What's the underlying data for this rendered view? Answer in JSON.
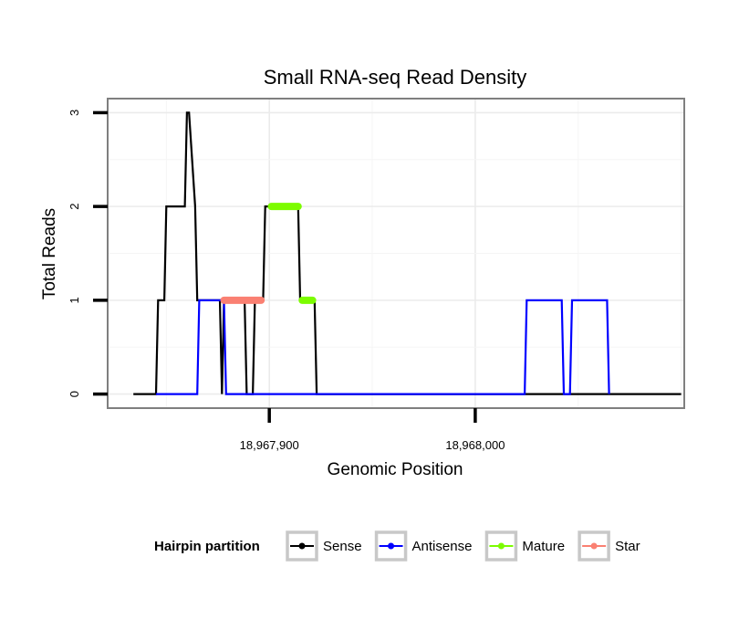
{
  "chart_data": {
    "type": "line",
    "title": "Small RNA-seq Read Density",
    "xlabel": "Genomic Position",
    "ylabel": "Total Reads",
    "xlim": [
      18967821.5,
      18968101.5
    ],
    "ylim": [
      -0.15,
      3.15
    ],
    "xticks": [
      {
        "value": 18967900,
        "label": "18,967,900"
      },
      {
        "value": 18968000,
        "label": "18,968,000"
      }
    ],
    "yticks": [
      {
        "value": 0,
        "label": "0"
      },
      {
        "value": 1,
        "label": "1"
      },
      {
        "value": 2,
        "label": "2"
      },
      {
        "value": 3,
        "label": "3"
      }
    ],
    "grid": true,
    "legend": {
      "title": "Hairpin partition",
      "position": "bottom",
      "entries": [
        {
          "name": "Sense",
          "color": "#000000"
        },
        {
          "name": "Antisense",
          "color": "#0000ff"
        },
        {
          "name": "Mature",
          "color": "#7cfc00"
        },
        {
          "name": "Star",
          "color": "#fa8072"
        }
      ]
    },
    "series": [
      {
        "name": "Sense",
        "color": "#000000",
        "style": "line",
        "x": [
          18967834,
          18967845,
          18967846,
          18967849,
          18967850,
          18967859,
          18967860,
          18967861,
          18967864,
          18967865,
          18967876,
          18967877,
          18967878,
          18967879,
          18967888,
          18967889,
          18967892,
          18967893,
          18967894,
          18967895,
          18967897,
          18967898,
          18967899,
          18967900,
          18967914,
          18967915,
          18967922,
          18967923,
          18968100
        ],
        "y": [
          0,
          0,
          1,
          1,
          2,
          2,
          3,
          3,
          2,
          1,
          1,
          0,
          1,
          1,
          1,
          0,
          0,
          1,
          1,
          1,
          1,
          2,
          2,
          2,
          2,
          1,
          1,
          0,
          0
        ]
      },
      {
        "name": "Antisense",
        "color": "#0000ff",
        "style": "line",
        "x": [
          18967845,
          18967865,
          18967866,
          18967878,
          18967879,
          18967922,
          18968024,
          18968025,
          18968042,
          18968043,
          18968046,
          18968047,
          18968064,
          18968065
        ],
        "y": [
          0,
          0,
          1,
          1,
          0,
          0,
          0,
          1,
          1,
          0,
          0,
          1,
          1,
          0
        ]
      },
      {
        "name": "Mature",
        "color": "#7cfc00",
        "style": "segment",
        "segments": [
          {
            "x": [
              18967901,
              18967914
            ],
            "y": 2
          },
          {
            "x": [
              18967916,
              18967921
            ],
            "y": 1
          }
        ]
      },
      {
        "name": "Star",
        "color": "#fa8072",
        "style": "segment",
        "segments": [
          {
            "x": [
              18967878,
              18967896
            ],
            "y": 1
          }
        ]
      }
    ]
  }
}
